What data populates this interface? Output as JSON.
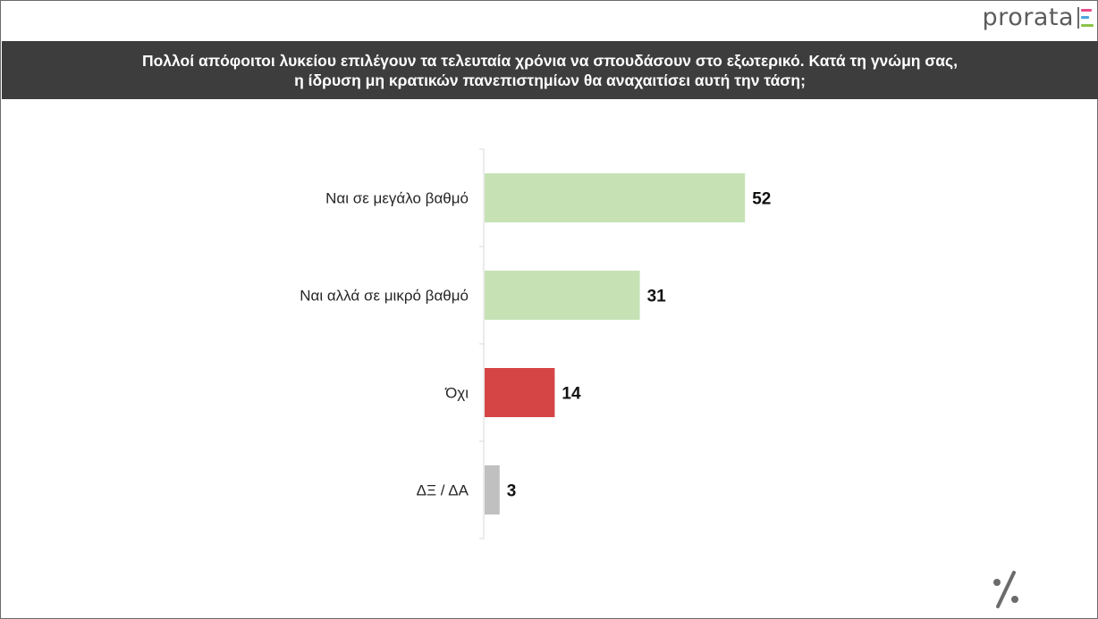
{
  "logo": {
    "text": "prorata",
    "colors": [
      "#e94b8a",
      "#4aa3df",
      "#8bc34a"
    ]
  },
  "title": {
    "line1": "Πολλοί απόφοιτοι λυκείου επιλέγουν τα τελευταία χρόνια να σπουδάσουν στο εξωτερικό. Κατά τη γνώμη σας,",
    "line2": "η ίδρυση μη κρατικών πανεπιστημίων θα αναχαιτίσει αυτή την τάση;"
  },
  "chart_data": {
    "type": "bar",
    "orientation": "horizontal",
    "categories": [
      "Ναι σε μεγάλο βαθμό",
      "Ναι αλλά σε μικρό βαθμό",
      "Όχι",
      "ΔΞ / ΔΑ"
    ],
    "values": [
      52,
      31,
      14,
      3
    ],
    "data_labels": [
      "52",
      "31",
      "14",
      "3"
    ],
    "colors": [
      "#c6e2b5",
      "#c6e2b5",
      "#d64545",
      "#c0c0c0"
    ],
    "xlim": [
      0,
      100
    ],
    "grid": false,
    "legend": "none"
  },
  "footer": {
    "icon": "percent-icon",
    "icon_color": "#6b6b6b"
  }
}
